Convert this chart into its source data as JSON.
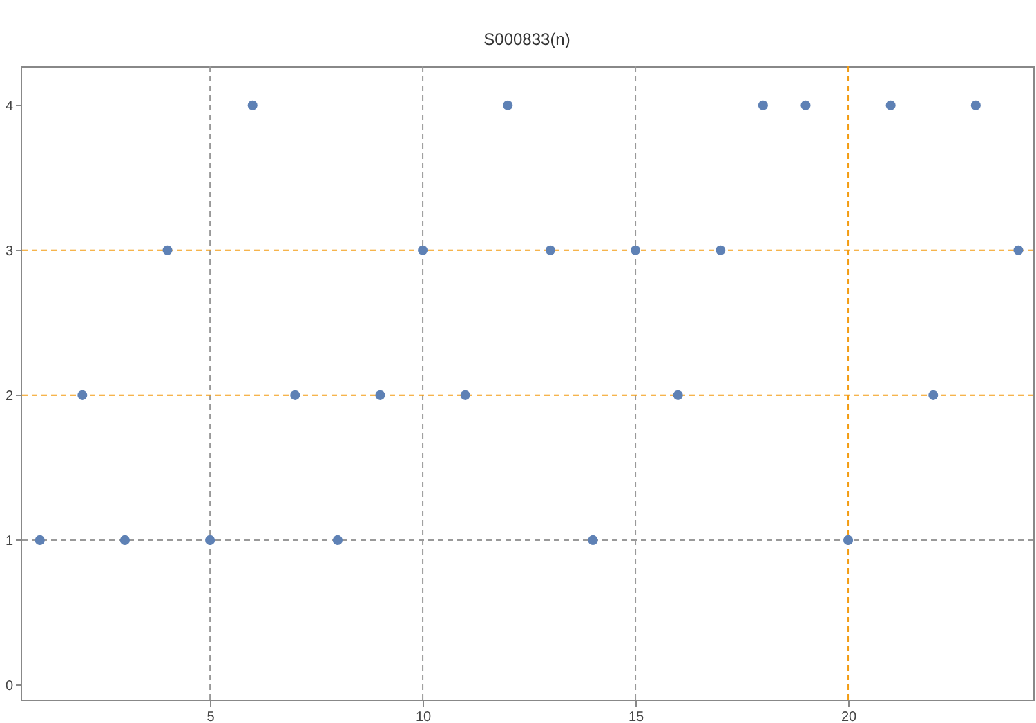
{
  "chart_data": {
    "type": "scatter",
    "title": "S000833(n)",
    "x": [
      1,
      2,
      3,
      4,
      5,
      6,
      7,
      8,
      9,
      10,
      11,
      12,
      13,
      14,
      15,
      16,
      17,
      18,
      19,
      20,
      21,
      22,
      23,
      24
    ],
    "series": [
      {
        "color": "#5e81b5",
        "values": [
          1,
          2,
          1,
          3,
          1,
          4,
          2,
          1,
          2,
          3,
          2,
          4,
          3,
          1,
          3,
          2,
          3,
          4,
          4,
          1,
          4,
          2,
          4,
          3
        ]
      }
    ],
    "marker": "circle",
    "xlim": [
      0.55,
      24.35
    ],
    "ylim": [
      -0.1,
      4.27
    ],
    "xticks": [
      5,
      10,
      15,
      20
    ],
    "yticks": [
      0,
      1,
      2,
      3,
      4
    ],
    "ref_lines": [
      {
        "axis": "x",
        "value": 5,
        "color": "#999999",
        "line_style": "dashed"
      },
      {
        "axis": "x",
        "value": 10,
        "color": "#999999",
        "line_style": "dashed"
      },
      {
        "axis": "x",
        "value": 15,
        "color": "#999999",
        "line_style": "dashed"
      },
      {
        "axis": "x",
        "value": 20,
        "color": "#f39c12",
        "line_style": "dashed"
      },
      {
        "axis": "y",
        "value": 1,
        "color": "#999999",
        "line_style": "dashed"
      },
      {
        "axis": "y",
        "value": 2,
        "color": "#f39c12",
        "line_style": "dashed"
      },
      {
        "axis": "y",
        "value": 3,
        "color": "#f39c12",
        "line_style": "dashed"
      }
    ]
  }
}
